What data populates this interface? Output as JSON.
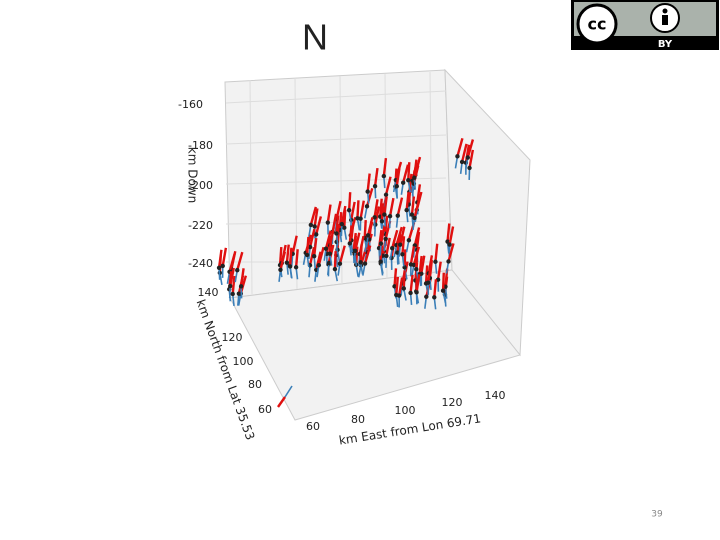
{
  "slide": {
    "title": "N",
    "page_number": "39",
    "license": {
      "badge": "BY"
    },
    "figure": {
      "z_axis": {
        "label": "km Down",
        "ticks": [
          -160,
          -180,
          -200,
          -220,
          -240
        ]
      },
      "y_axis": {
        "label": "km North from Lat 35.53",
        "ticks": [
          140,
          120,
          100,
          80,
          60
        ]
      },
      "x_axis": {
        "label": "km East from Lon 69.71",
        "ticks": [
          60,
          80,
          100,
          120,
          140
        ]
      }
    }
  }
}
